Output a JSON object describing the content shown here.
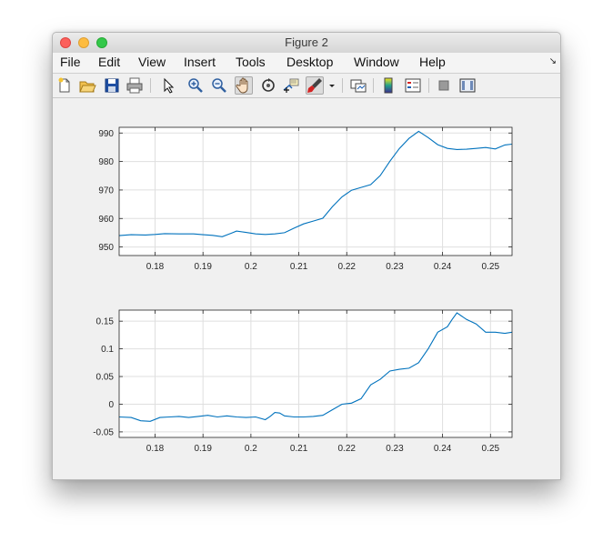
{
  "window": {
    "title": "Figure 2"
  },
  "menu": {
    "items": [
      "File",
      "Edit",
      "View",
      "Insert",
      "Tools",
      "Desktop",
      "Window",
      "Help"
    ]
  },
  "toolbar": {
    "buttons": [
      {
        "name": "new-figure-icon"
      },
      {
        "name": "open-file-icon"
      },
      {
        "name": "save-icon"
      },
      {
        "name": "print-icon"
      },
      {
        "name": "select-arrow-icon"
      },
      {
        "name": "zoom-in-icon"
      },
      {
        "name": "zoom-out-icon"
      },
      {
        "name": "pan-hand-icon",
        "pressed": true
      },
      {
        "name": "rotate-3d-icon"
      },
      {
        "name": "data-cursor-icon"
      },
      {
        "name": "brush-icon"
      },
      {
        "name": "brush-dropdown-icon"
      },
      {
        "name": "link-plot-icon"
      },
      {
        "name": "colorbar-icon"
      },
      {
        "name": "legend-icon"
      },
      {
        "name": "hide-plot-tools-icon"
      },
      {
        "name": "show-plot-tools-icon"
      }
    ]
  },
  "colors": {
    "line": "#0072bd",
    "grid": "#dfdfdf",
    "axes": "#262626"
  },
  "chart_data": [
    {
      "type": "line",
      "xlim": [
        0.1725,
        0.2545
      ],
      "ylim": [
        947,
        992
      ],
      "xticks": [
        0.18,
        0.19,
        0.2,
        0.21,
        0.22,
        0.23,
        0.24,
        0.25
      ],
      "xtick_labels": [
        "0.18",
        "0.19",
        "0.2",
        "0.21",
        "0.22",
        "0.23",
        "0.24",
        "0.25"
      ],
      "yticks": [
        950,
        960,
        970,
        980,
        990
      ],
      "ytick_labels": [
        "950",
        "960",
        "970",
        "980",
        "990"
      ],
      "grid": true,
      "x": [
        0.1725,
        0.175,
        0.178,
        0.18,
        0.182,
        0.185,
        0.188,
        0.19,
        0.192,
        0.194,
        0.196,
        0.197,
        0.199,
        0.201,
        0.203,
        0.205,
        0.207,
        0.209,
        0.211,
        0.213,
        0.215,
        0.217,
        0.219,
        0.221,
        0.223,
        0.225,
        0.227,
        0.229,
        0.231,
        0.233,
        0.235,
        0.237,
        0.239,
        0.241,
        0.243,
        0.245,
        0.247,
        0.249,
        0.251,
        0.253,
        0.2545
      ],
      "y": [
        954,
        954.3,
        954.2,
        954.4,
        954.7,
        954.6,
        954.6,
        954.3,
        954.1,
        953.6,
        954.9,
        955.6,
        955.1,
        954.6,
        954.4,
        954.6,
        955.0,
        956.6,
        958.1,
        959.1,
        960.1,
        964.1,
        967.6,
        969.9,
        970.9,
        971.9,
        975.1,
        980.1,
        984.6,
        988.1,
        990.6,
        988.4,
        985.9,
        984.6,
        984.2,
        984.3,
        984.6,
        984.9,
        984.4,
        985.8,
        986.1
      ]
    },
    {
      "type": "line",
      "xlim": [
        0.1725,
        0.2545
      ],
      "ylim": [
        -0.06,
        0.17
      ],
      "xticks": [
        0.18,
        0.19,
        0.2,
        0.21,
        0.22,
        0.23,
        0.24,
        0.25
      ],
      "xtick_labels": [
        "0.18",
        "0.19",
        "0.2",
        "0.21",
        "0.22",
        "0.23",
        "0.24",
        "0.25"
      ],
      "yticks": [
        -0.05,
        0,
        0.05,
        0.1,
        0.15
      ],
      "ytick_labels": [
        "-0.05",
        "0",
        "0.05",
        "0.1",
        "0.15"
      ],
      "grid": true,
      "x": [
        0.1725,
        0.175,
        0.177,
        0.179,
        0.181,
        0.183,
        0.185,
        0.187,
        0.189,
        0.191,
        0.193,
        0.195,
        0.197,
        0.199,
        0.201,
        0.203,
        0.204,
        0.205,
        0.206,
        0.207,
        0.209,
        0.211,
        0.213,
        0.215,
        0.217,
        0.219,
        0.221,
        0.223,
        0.225,
        0.227,
        0.229,
        0.231,
        0.233,
        0.235,
        0.237,
        0.239,
        0.241,
        0.242,
        0.243,
        0.245,
        0.247,
        0.249,
        0.251,
        0.253,
        0.2545
      ],
      "y": [
        -0.023,
        -0.024,
        -0.03,
        -0.031,
        -0.024,
        -0.023,
        -0.022,
        -0.024,
        -0.022,
        -0.02,
        -0.023,
        -0.021,
        -0.023,
        -0.024,
        -0.023,
        -0.028,
        -0.022,
        -0.015,
        -0.016,
        -0.021,
        -0.023,
        -0.023,
        -0.022,
        -0.02,
        -0.01,
        0.0,
        0.002,
        0.01,
        0.035,
        0.045,
        0.06,
        0.063,
        0.065,
        0.075,
        0.1,
        0.13,
        0.14,
        0.153,
        0.165,
        0.153,
        0.145,
        0.13,
        0.13,
        0.128,
        0.13
      ]
    }
  ]
}
